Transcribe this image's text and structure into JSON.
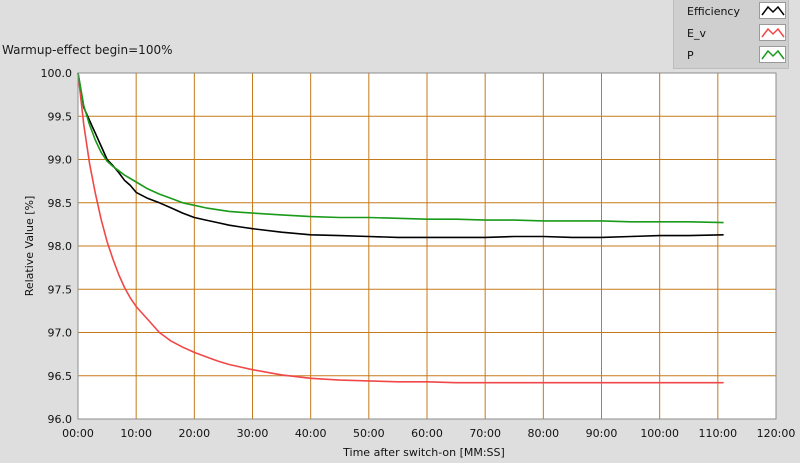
{
  "chart_data": {
    "type": "line",
    "title": "Warmup-effect begin=100%",
    "xlabel": "Time after switch-on [MM:SS]",
    "ylabel": "Relative Value [%]",
    "xlim": [
      0,
      120
    ],
    "ylim": [
      96.0,
      100.0
    ],
    "x_ticks": [
      "00:00",
      "10:00",
      "20:00",
      "30:00",
      "40:00",
      "50:00",
      "60:00",
      "70:00",
      "80:00",
      "90:00",
      "100:00",
      "110:00",
      "120:00"
    ],
    "y_ticks": [
      "100.0",
      "99.5",
      "99.0",
      "98.5",
      "98.0",
      "97.5",
      "97.0",
      "96.5",
      "96.0"
    ],
    "grid": true,
    "legend_position": "top-right",
    "x_unit": "minutes",
    "series": [
      {
        "name": "Efficiency",
        "color": "#000000",
        "x": [
          0,
          1,
          2,
          3,
          4,
          5,
          6,
          7,
          8,
          9,
          10,
          12,
          14,
          16,
          18,
          20,
          22,
          24,
          26,
          28,
          30,
          35,
          40,
          45,
          50,
          55,
          60,
          65,
          70,
          75,
          80,
          85,
          90,
          95,
          100,
          105,
          111
        ],
        "y": [
          100.0,
          99.6,
          99.45,
          99.3,
          99.15,
          99.0,
          98.93,
          98.85,
          98.76,
          98.7,
          98.62,
          98.55,
          98.5,
          98.44,
          98.38,
          98.33,
          98.3,
          98.27,
          98.24,
          98.22,
          98.2,
          98.16,
          98.13,
          98.12,
          98.11,
          98.1,
          98.1,
          98.1,
          98.1,
          98.11,
          98.11,
          98.1,
          98.1,
          98.11,
          98.12,
          98.12,
          98.13
        ]
      },
      {
        "name": "E_v",
        "color": "#f04848",
        "x": [
          0,
          1,
          2,
          3,
          4,
          5,
          6,
          7,
          8,
          9,
          10,
          12,
          14,
          16,
          18,
          20,
          22,
          24,
          26,
          28,
          30,
          35,
          40,
          45,
          50,
          55,
          60,
          65,
          70,
          75,
          80,
          85,
          90,
          95,
          100,
          105,
          111
        ],
        "y": [
          100.0,
          99.4,
          98.95,
          98.6,
          98.3,
          98.05,
          97.85,
          97.67,
          97.52,
          97.4,
          97.3,
          97.15,
          97.0,
          96.9,
          96.83,
          96.77,
          96.72,
          96.67,
          96.63,
          96.6,
          96.57,
          96.51,
          96.47,
          96.45,
          96.44,
          96.43,
          96.43,
          96.42,
          96.42,
          96.42,
          96.42,
          96.42,
          96.42,
          96.42,
          96.42,
          96.42,
          96.42
        ]
      },
      {
        "name": "P",
        "color": "#1a9a1a",
        "x": [
          0,
          1,
          2,
          3,
          4,
          5,
          6,
          7,
          8,
          9,
          10,
          12,
          14,
          16,
          18,
          20,
          22,
          24,
          26,
          28,
          30,
          35,
          40,
          45,
          50,
          55,
          60,
          65,
          70,
          75,
          80,
          85,
          90,
          95,
          100,
          105,
          111
        ],
        "y": [
          100.0,
          99.62,
          99.4,
          99.22,
          99.08,
          98.98,
          98.92,
          98.87,
          98.82,
          98.78,
          98.74,
          98.66,
          98.6,
          98.55,
          98.5,
          98.47,
          98.44,
          98.42,
          98.4,
          98.39,
          98.38,
          98.36,
          98.34,
          98.33,
          98.33,
          98.32,
          98.31,
          98.31,
          98.3,
          98.3,
          98.29,
          98.29,
          98.29,
          98.28,
          98.28,
          98.28,
          98.27
        ]
      }
    ]
  },
  "colors": {
    "panel_bg": "#dedede",
    "plot_bg": "#ffffff",
    "grid": "#c57a1a"
  }
}
